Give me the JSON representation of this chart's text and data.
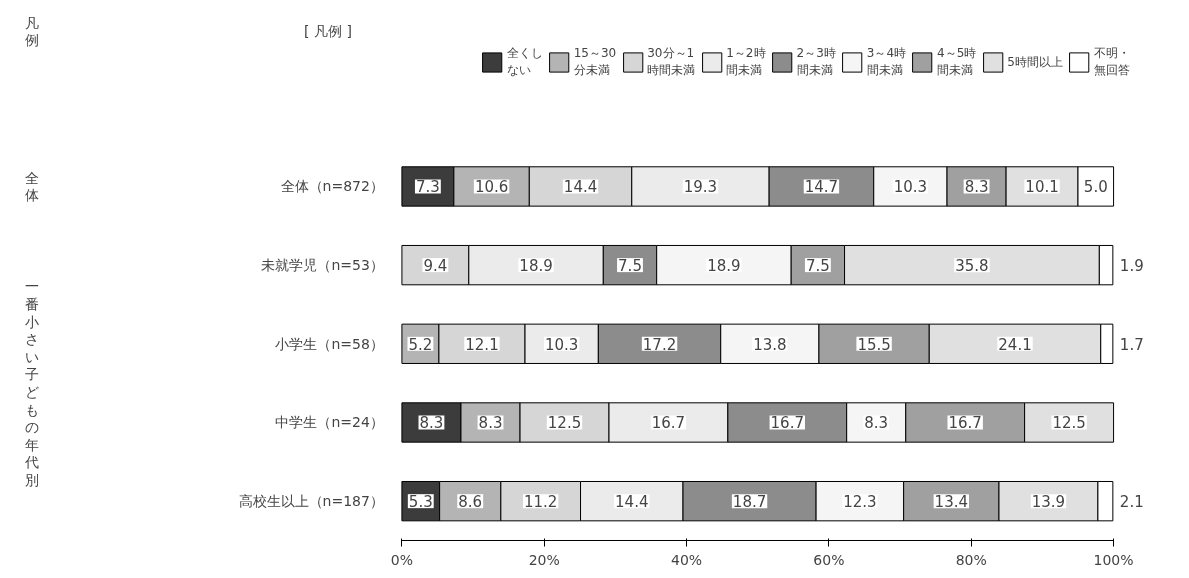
{
  "chart_data": {
    "type": "bar",
    "orientation": "horizontal",
    "stacked": true,
    "legend": "top",
    "legend_title": "[ 凡例 ]",
    "grid": false,
    "categories": [
      "全体（n=872）",
      "未就学児（n=53）",
      "小学生（n=58）",
      "中学生（n=24）",
      "高校生以上（n=187）"
    ],
    "xlim": [
      0,
      100
    ],
    "xticks": [
      {
        "value": 0,
        "label": "0%"
      },
      {
        "value": 20,
        "label": "20%"
      },
      {
        "value": 40,
        "label": "40%"
      },
      {
        "value": 60,
        "label": "60%"
      },
      {
        "value": 80,
        "label": "80%"
      },
      {
        "value": 100,
        "label": "100%"
      }
    ],
    "annotations": [
      "凡例",
      "全体",
      "一番小さい子どもの年代別"
    ],
    "series": [
      {
        "name": "全くしない",
        "color": "#3c3c3c",
        "values": [
          7.3,
          null,
          null,
          8.3,
          5.3
        ],
        "value_labels": [
          "7.3",
          null,
          null,
          "8.3",
          "5.3"
        ]
      },
      {
        "name": "15～30分未満",
        "color": "#b4b4b4",
        "values": [
          10.6,
          null,
          5.2,
          8.3,
          8.6
        ],
        "value_labels": [
          "10.6",
          null,
          "5.2",
          "8.3",
          "8.6"
        ]
      },
      {
        "name": "30分～1時間未満",
        "color": "#d6d6d6",
        "values": [
          14.4,
          9.4,
          12.1,
          12.5,
          11.2
        ],
        "value_labels": [
          "14.4",
          "9.4",
          "12.1",
          "12.5",
          "11.2"
        ]
      },
      {
        "name": "1～2時間未満",
        "color": "#ebebeb",
        "values": [
          19.3,
          18.9,
          10.3,
          16.7,
          14.4
        ],
        "value_labels": [
          "19.3",
          "18.9",
          "10.3",
          "16.7",
          "14.4"
        ]
      },
      {
        "name": "2～3時間未満",
        "color": "#8c8c8c",
        "values": [
          14.7,
          7.5,
          17.2,
          16.7,
          18.7
        ],
        "value_labels": [
          "14.7",
          "7.5",
          "17.2",
          "16.7",
          "18.7"
        ]
      },
      {
        "name": "3～4時間未満",
        "color": "#f5f5f5",
        "values": [
          10.3,
          18.9,
          13.8,
          8.3,
          12.3
        ],
        "value_labels": [
          "10.3",
          "18.9",
          "13.8",
          "8.3",
          "12.3"
        ]
      },
      {
        "name": "4～5時間未満",
        "color": "#a0a0a0",
        "values": [
          8.3,
          7.5,
          15.5,
          16.7,
          13.4
        ],
        "value_labels": [
          "8.3",
          "7.5",
          "15.5",
          "16.7",
          "13.4"
        ]
      },
      {
        "name": "5時間以上",
        "color": "#e0e0e0",
        "values": [
          10.1,
          35.8,
          24.1,
          12.5,
          13.9
        ],
        "value_labels": [
          "10.1",
          "35.8",
          "24.1",
          "12.5",
          "13.9"
        ]
      },
      {
        "name": "不明・無回答",
        "color": "#ffffff",
        "values": [
          5.0,
          1.9,
          1.7,
          null,
          2.1
        ],
        "value_labels": [
          "5.0",
          "1.9",
          "1.7",
          null,
          "2.1"
        ]
      }
    ]
  }
}
